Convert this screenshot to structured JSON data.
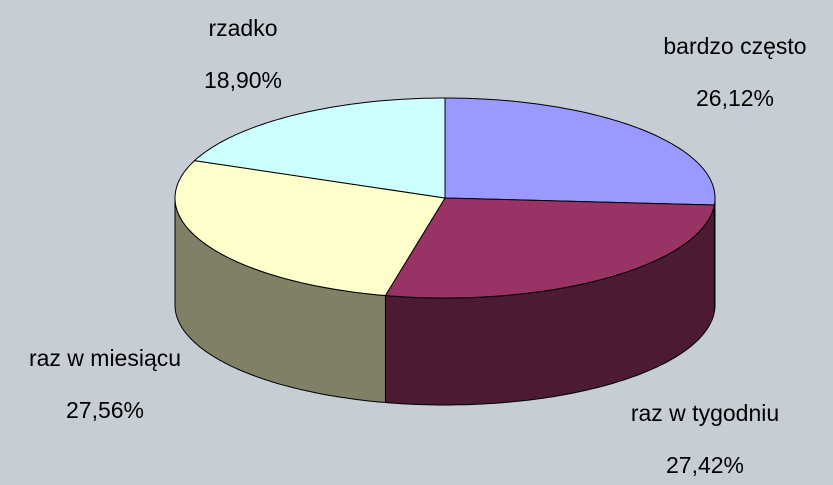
{
  "chart_data": {
    "type": "pie3d",
    "categories": [
      "bardzo często",
      "raz w tygodniu",
      "raz w miesiącu",
      "rzadko"
    ],
    "values": [
      26.12,
      27.42,
      27.56,
      18.9
    ],
    "value_labels": [
      "26,12%",
      "27,42%",
      "27,56%",
      "18,90%"
    ],
    "colors": [
      "#9999ff",
      "#993366",
      "#ffffcc",
      "#ccffff"
    ]
  }
}
